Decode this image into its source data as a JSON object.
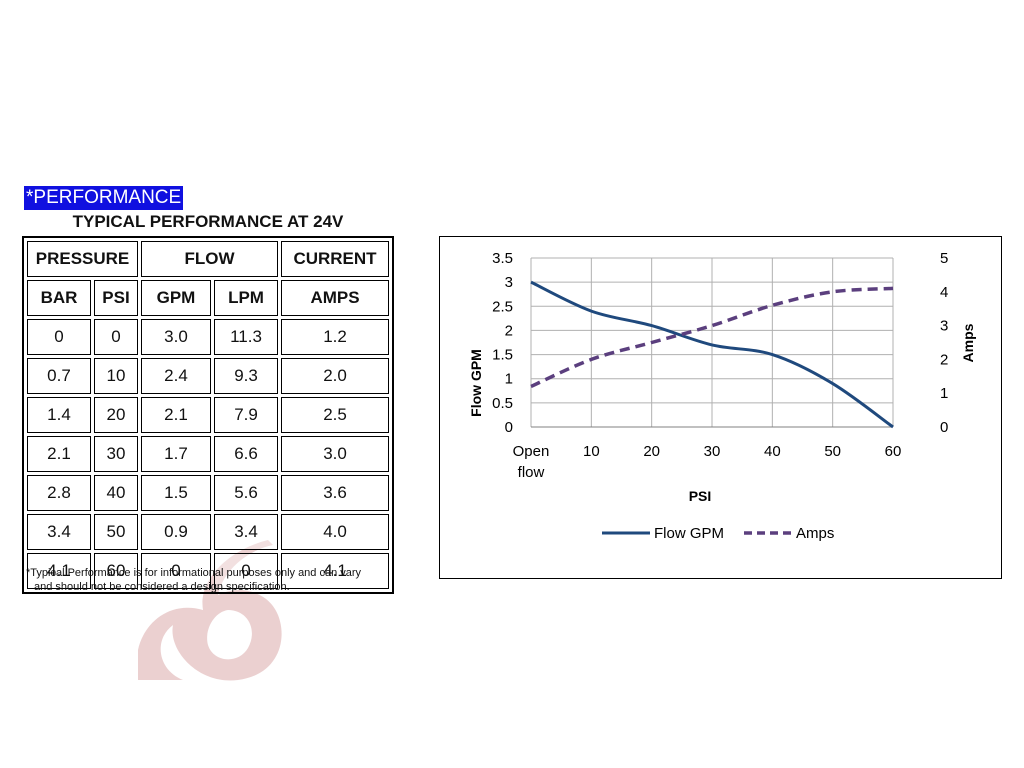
{
  "section_label": "*PERFORMANCE",
  "table": {
    "title": "TYPICAL PERFORMANCE AT 24V",
    "group_headers": [
      "PRESSURE",
      "FLOW",
      "CURRENT"
    ],
    "column_headers": [
      "BAR",
      "PSI",
      "GPM",
      "LPM",
      "AMPS"
    ],
    "rows": [
      [
        "0",
        "0",
        "3.0",
        "11.3",
        "1.2"
      ],
      [
        "0.7",
        "10",
        "2.4",
        "9.3",
        "2.0"
      ],
      [
        "1.4",
        "20",
        "2.1",
        "7.9",
        "2.5"
      ],
      [
        "2.1",
        "30",
        "1.7",
        "6.6",
        "3.0"
      ],
      [
        "2.8",
        "40",
        "1.5",
        "5.6",
        "3.6"
      ],
      [
        "3.4",
        "50",
        "0.9",
        "3.4",
        "4.0"
      ],
      [
        "4.1",
        "60",
        "0",
        "0",
        "4.1"
      ]
    ]
  },
  "footnote": {
    "line1": "*Typical Performance is for informational purposes only and can vary",
    "line2": "and should not be considered a design specification."
  },
  "chart_data": {
    "type": "line",
    "title": "",
    "categories": [
      "Open flow",
      "10",
      "20",
      "30",
      "40",
      "50",
      "60"
    ],
    "xlabel": "PSI",
    "ylabel": "Flow GPM",
    "y2label": "Amps",
    "ylim": [
      0,
      3.5
    ],
    "y2lim": [
      0,
      5
    ],
    "yticks": [
      "0",
      "0.5",
      "1",
      "1.5",
      "2",
      "2.5",
      "3",
      "3.5"
    ],
    "y2ticks": [
      "0",
      "1",
      "2",
      "3",
      "4",
      "5"
    ],
    "grid": true,
    "legend": "bottom",
    "series": [
      {
        "name": "Flow GPM",
        "axis": "left",
        "style": "solid",
        "color": "#1f497d",
        "values": [
          3.0,
          2.4,
          2.1,
          1.7,
          1.5,
          0.9,
          0
        ]
      },
      {
        "name": "Amps",
        "axis": "right",
        "style": "dashed",
        "color": "#5b3f7e",
        "values": [
          1.2,
          2.0,
          2.5,
          3.0,
          3.6,
          4.0,
          4.1
        ]
      }
    ]
  }
}
